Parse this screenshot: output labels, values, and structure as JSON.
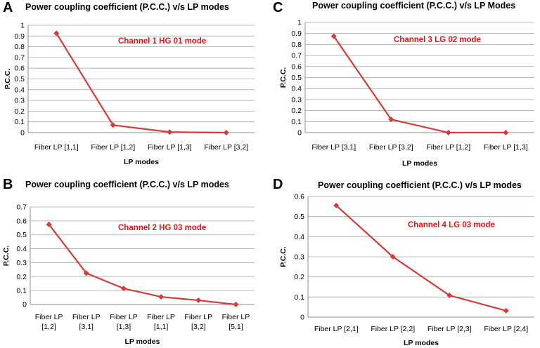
{
  "chart_data": [
    {
      "panel_label": "A",
      "type": "line",
      "title": "Power coupling coefficient (P.C.C.) v/s LP modes",
      "xlabel": "LP modes",
      "ylabel": "P.C.C.",
      "annotation": "Channel 1 HG 01 mode",
      "categories": [
        [
          "Fiber LP [1,1]"
        ],
        [
          "Fiber LP [1,2]"
        ],
        [
          "Fiber LP [1,3]"
        ],
        [
          "Fiber LP [3,2]"
        ]
      ],
      "values": [
        0.925,
        0.07,
        0.005,
        0.0
      ],
      "ylim": [
        0,
        1
      ],
      "yticks": [
        "0",
        "0.1",
        "0.2",
        "0.3",
        "0.4",
        "0.5",
        "0.6",
        "0.7",
        "0.8",
        "0.9",
        "1"
      ],
      "grid": true
    },
    {
      "panel_label": "C",
      "type": "line",
      "title": "Power coupling coefficient (P.C.C.) v/s LP Modes",
      "xlabel": "LP modes",
      "ylabel": "P.C.C.",
      "annotation": "Channel 3 LG 02 mode",
      "categories": [
        [
          "Fiber LP [3,1]"
        ],
        [
          "Fiber LP [3,2]"
        ],
        [
          "Fiber LP [1,2]"
        ],
        [
          "Fiber LP [1,3]"
        ]
      ],
      "values": [
        0.875,
        0.12,
        0.0,
        0.0
      ],
      "ylim": [
        0,
        1
      ],
      "yticks": [
        "0",
        "0.1",
        "0.2",
        "0.3",
        "0.4",
        "0.5",
        "0.6",
        "0.7",
        "0.8",
        "0.9",
        "1"
      ],
      "grid": true
    },
    {
      "panel_label": "B",
      "type": "line",
      "title": "Power coupling coefficient (P.C.C.) v/s LP modes",
      "xlabel": "LP modes",
      "ylabel": "P.C.C.",
      "annotation": "Channel 2 HG 03 mode",
      "categories": [
        [
          "Fiber LP",
          "[1,2]"
        ],
        [
          "Fiber LP",
          "[3,1]"
        ],
        [
          "Fiber LP",
          "[1,3]"
        ],
        [
          "Fiber LP",
          "[1,1]"
        ],
        [
          "Fiber LP",
          "[3,2]"
        ],
        [
          "Fiber LP",
          "[5,1]"
        ]
      ],
      "values": [
        0.575,
        0.225,
        0.115,
        0.055,
        0.03,
        0.0
      ],
      "ylim": [
        0,
        0.7
      ],
      "yticks": [
        "0",
        "0.1",
        "0.2",
        "0.3",
        "0.4",
        "0.5",
        "0.6",
        "0.7"
      ],
      "grid": true
    },
    {
      "panel_label": "D",
      "type": "line",
      "title": "Power coupling coefficient (P.C.C.) v/s LP modes",
      "xlabel": "LP modes",
      "ylabel": "P.C.C.",
      "annotation": "Channel 4 LG 03 mode",
      "categories": [
        [
          "Fiber LP [2,1]"
        ],
        [
          "Fiber LP [2,2]"
        ],
        [
          "Fiber LP [2,3]"
        ],
        [
          "Fiber LP [2,4]"
        ]
      ],
      "values": [
        0.555,
        0.3,
        0.108,
        0.032
      ],
      "ylim": [
        0,
        0.6
      ],
      "yticks": [
        "0",
        "0.1",
        "0.2",
        "0.3",
        "0.4",
        "0.5",
        "0.6"
      ],
      "grid": true
    }
  ],
  "colors": {
    "line": "#d43b3b",
    "marker": "#d43b3b",
    "annotation": "#e0161c",
    "grid": "#a6a6a6",
    "axis": "#8c8c8c"
  }
}
